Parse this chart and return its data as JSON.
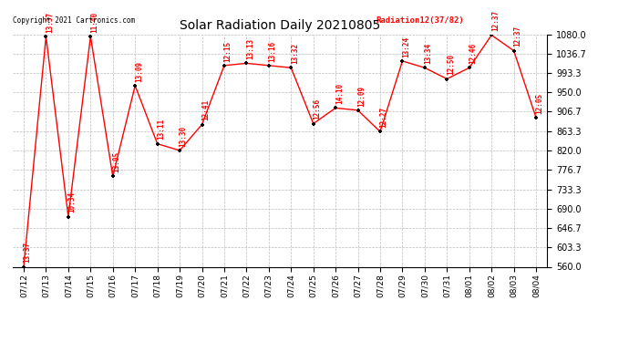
{
  "title": "Solar Radiation Daily 20210805",
  "copyright_text": "Copyright 2021 Cartronics.com",
  "legend_text": "Radiation12(37/82)",
  "dates": [
    "07/12",
    "07/13",
    "07/14",
    "07/15",
    "07/16",
    "07/17",
    "07/18",
    "07/19",
    "07/20",
    "07/21",
    "07/22",
    "07/23",
    "07/24",
    "07/25",
    "07/26",
    "07/27",
    "07/28",
    "07/29",
    "07/30",
    "07/31",
    "08/01",
    "08/02",
    "08/03",
    "08/04"
  ],
  "values": [
    560.0,
    1075.0,
    672.0,
    1075.0,
    762.0,
    965.0,
    835.0,
    820.0,
    878.0,
    1010.0,
    1015.0,
    1010.0,
    1005.0,
    880.0,
    915.0,
    910.0,
    862.0,
    1020.0,
    1005.0,
    980.0,
    1005.0,
    1078.0,
    1043.0,
    893.0
  ],
  "labels": [
    "13:37",
    "13:37",
    "10:34",
    "11:40",
    "13:05",
    "13:09",
    "13:11",
    "13:30",
    "12:41",
    "12:15",
    "13:13",
    "13:16",
    "13:32",
    "12:56",
    "14:10",
    "12:09",
    "12:27",
    "13:24",
    "13:34",
    "12:50",
    "12:46",
    "12:37",
    "12:37",
    "12:05"
  ],
  "ylim": [
    560.0,
    1080.0
  ],
  "yticks": [
    560.0,
    603.3,
    646.7,
    690.0,
    733.3,
    776.7,
    820.0,
    863.3,
    906.7,
    950.0,
    993.3,
    1036.7,
    1080.0
  ],
  "ytick_labels": [
    "560.0",
    "603.3",
    "646.7",
    "690.0",
    "733.3",
    "776.7",
    "820.0",
    "863.3",
    "906.7",
    "950.0",
    "993.3",
    "1036.7",
    "1080.0"
  ],
  "line_color": "#ff0000",
  "marker_color": "#000000",
  "label_color": "#ff0000",
  "title_color": "#000000",
  "background_color": "#ffffff",
  "grid_color": "#bbbbbb",
  "copyright_color": "#000000",
  "figwidth": 6.9,
  "figheight": 3.75,
  "dpi": 100
}
